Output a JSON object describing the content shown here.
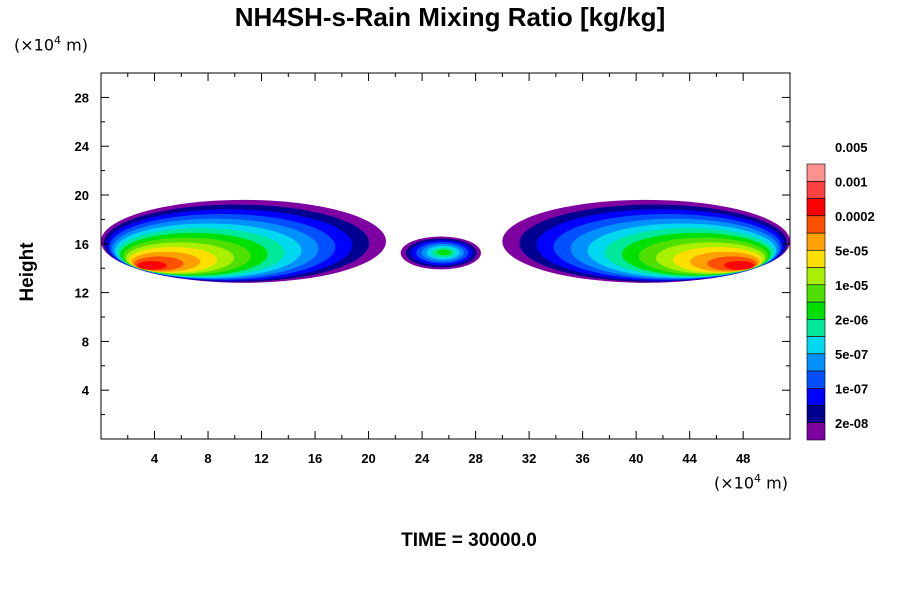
{
  "chart_data": {
    "type": "heatmap",
    "title": "NH4SH-s-Rain Mixing Ratio [kg/kg]",
    "ylabel": "Height",
    "xlabel": "",
    "x_unit_prefix": "(×10",
    "x_unit_exp": "4",
    "x_unit_suffix": " m)",
    "y_unit_prefix": "(×10",
    "y_unit_exp": "4",
    "y_unit_suffix": " m)",
    "xlim": [
      0,
      51.5
    ],
    "ylim": [
      0,
      30
    ],
    "x_ticks": [
      4,
      8,
      12,
      16,
      20,
      24,
      28,
      32,
      36,
      40,
      44,
      48
    ],
    "y_ticks": [
      4,
      8,
      12,
      16,
      20,
      24,
      28
    ],
    "time_label": "TIME = 30000.0",
    "colorbar": {
      "colors": [
        "#7f00a0",
        "#000090",
        "#0000ff",
        "#0050ff",
        "#0090ff",
        "#00d8f0",
        "#00e89a",
        "#00e000",
        "#50e000",
        "#a8f000",
        "#ffe000",
        "#ffa000",
        "#ff5000",
        "#ff0000",
        "#ff4040",
        "#ff9090"
      ],
      "labels": [
        "2e-08",
        "1e-07",
        "5e-07",
        "2e-06",
        "1e-05",
        "5e-05",
        "0.0002",
        "0.001",
        "0.005"
      ]
    },
    "regions": [
      {
        "x": [
          0,
          21.3
        ],
        "y": [
          12.8,
          19.6
        ],
        "core": [
          3.0,
          14.0
        ],
        "level": 13
      },
      {
        "x": [
          22.4,
          28.4
        ],
        "y": [
          13.9,
          16.6
        ],
        "core": [
          25.7,
          15.3
        ],
        "level": 7
      },
      {
        "x": [
          30.0,
          51.5
        ],
        "y": [
          12.8,
          19.6
        ],
        "core": [
          48.5,
          14.0
        ],
        "level": 13
      }
    ]
  }
}
